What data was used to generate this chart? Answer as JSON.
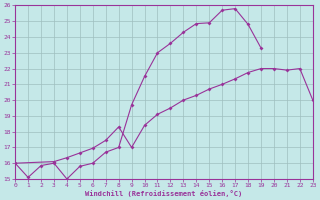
{
  "xlabel": "Windchill (Refroidissement éolien,°C)",
  "bg_color": "#c5e8e8",
  "grid_color": "#9fbfbf",
  "line_color": "#993399",
  "xlim": [
    0,
    23
  ],
  "ylim": [
    15,
    26
  ],
  "xticks": [
    0,
    1,
    2,
    3,
    4,
    5,
    6,
    7,
    8,
    9,
    10,
    11,
    12,
    13,
    14,
    15,
    16,
    17,
    18,
    19,
    20,
    21,
    22,
    23
  ],
  "yticks": [
    15,
    16,
    17,
    18,
    19,
    20,
    21,
    22,
    23,
    24,
    25,
    26
  ],
  "line1": {
    "x": [
      0,
      1,
      2,
      3,
      4,
      5,
      6,
      7,
      8,
      9,
      10,
      11,
      12,
      13,
      14,
      15,
      16,
      17,
      18,
      19
    ],
    "y": [
      16,
      15.1,
      15.85,
      16.0,
      15.0,
      15.8,
      16.0,
      16.7,
      17.0,
      19.7,
      21.5,
      23.0,
      23.6,
      24.3,
      24.85,
      24.9,
      25.7,
      25.8,
      24.8,
      23.3
    ]
  },
  "line2": {
    "x": [
      0,
      3,
      4,
      5,
      6,
      7,
      8,
      9,
      10,
      11,
      12,
      13,
      14,
      15,
      16,
      17,
      18,
      19,
      20,
      21,
      22,
      23
    ],
    "y": [
      16,
      16.1,
      16.35,
      16.65,
      16.95,
      17.45,
      18.3,
      17.0,
      18.4,
      19.1,
      19.5,
      20.0,
      20.3,
      20.7,
      21.0,
      21.35,
      21.75,
      22.0,
      22.0,
      21.9,
      22.0,
      20.0
    ]
  },
  "line3": {
    "x": [
      0,
      3,
      4,
      5,
      6,
      7,
      8,
      9,
      10,
      11,
      12,
      13,
      14,
      15,
      16,
      17,
      18,
      19,
      20,
      21,
      22,
      23
    ],
    "y": [
      16,
      16.1,
      16.35,
      16.65,
      16.95,
      17.45,
      18.3,
      17.0,
      18.4,
      19.1,
      19.5,
      20.0,
      20.3,
      20.7,
      21.0,
      21.35,
      21.75,
      22.0,
      22.0,
      21.9,
      22.0,
      20.0
    ]
  }
}
